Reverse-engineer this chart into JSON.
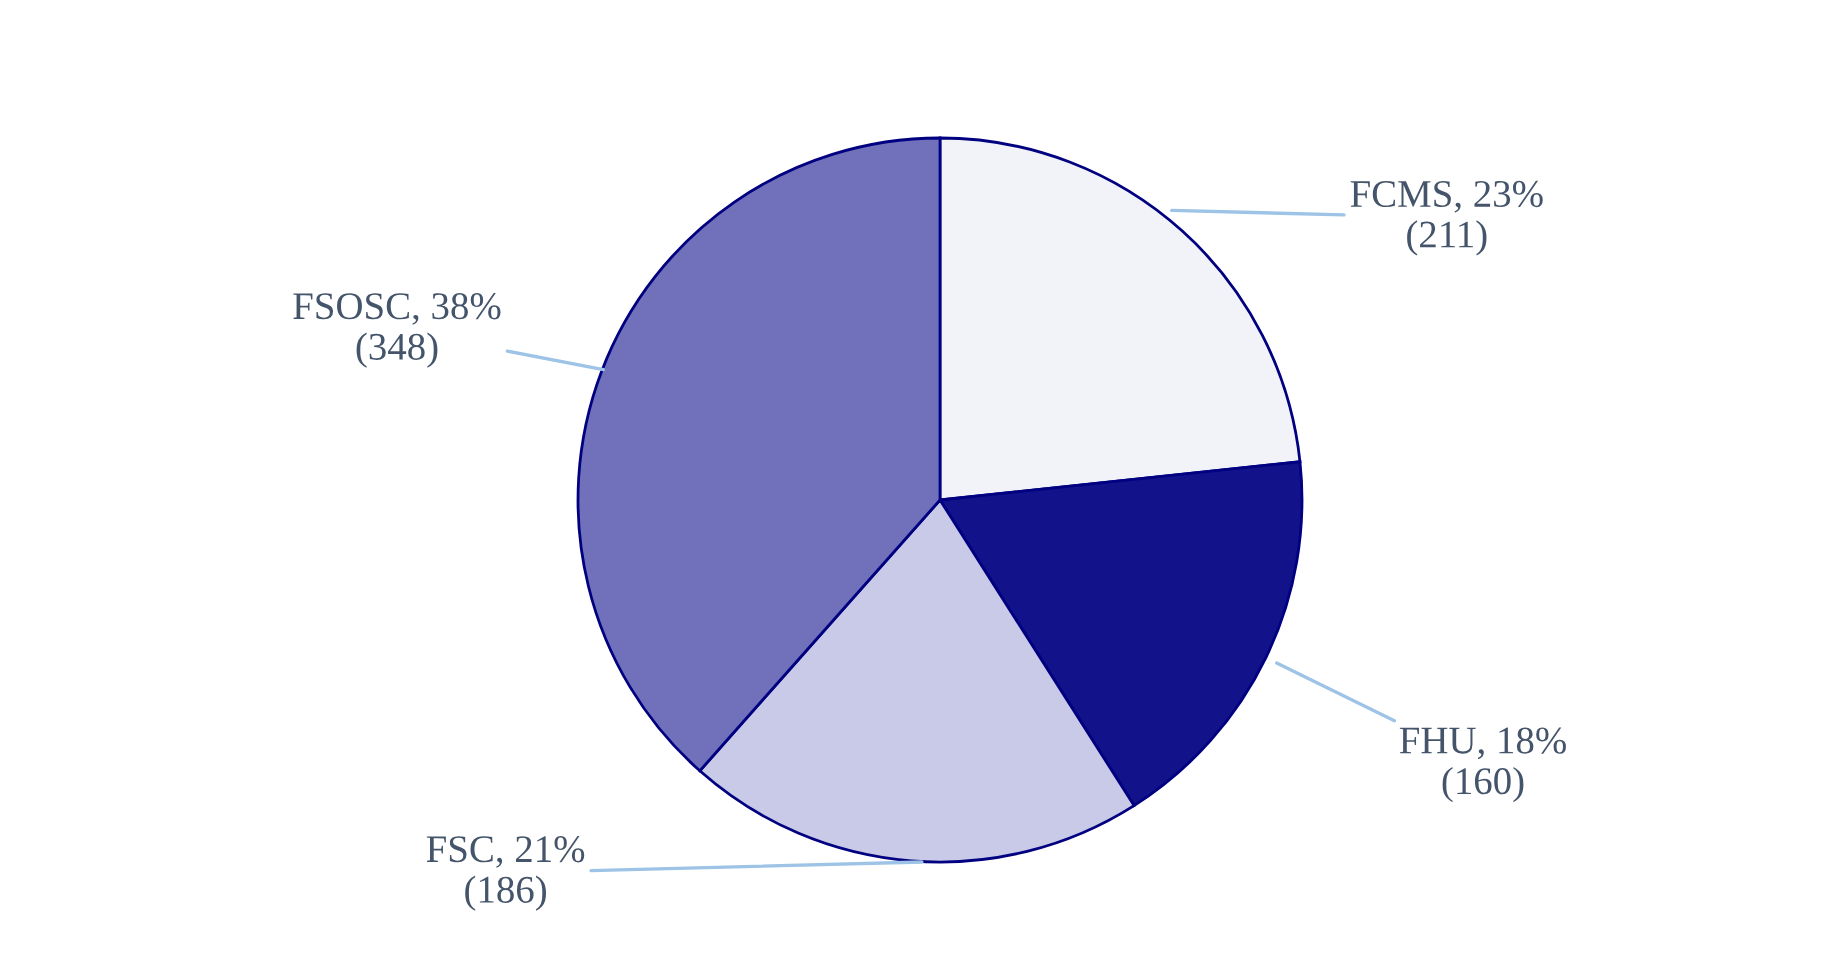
{
  "chart_data": {
    "type": "pie",
    "categories": [
      "FCMS",
      "FHU",
      "FSC",
      "FSOSC"
    ],
    "values": [
      211,
      160,
      186,
      348
    ],
    "value_labels": [
      "23%\n(211)",
      "18%\n(160)",
      "21%\n(186)",
      "38%\n(348)"
    ],
    "colors": [
      "#f2f2f9",
      "#12128a",
      "#c9c9e8",
      "#7070bb"
    ],
    "legend": false
  }
}
